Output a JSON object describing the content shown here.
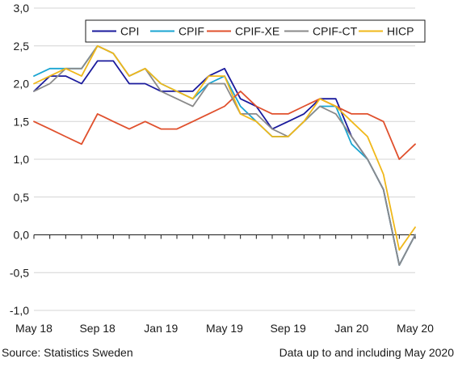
{
  "chart_data": {
    "type": "line",
    "x": [
      "May 18",
      "Jun 18",
      "Jul 18",
      "Aug 18",
      "Sep 18",
      "Oct 18",
      "Nov 18",
      "Dec 18",
      "Jan 19",
      "Feb 19",
      "Mar 19",
      "Apr 19",
      "May 19",
      "Jun 19",
      "Jul 19",
      "Aug 19",
      "Sep 19",
      "Oct 19",
      "Nov 19",
      "Dec 19",
      "Jan 20",
      "Feb 20",
      "Mar 20",
      "Apr 20",
      "May 20"
    ],
    "x_tick_labels": [
      "May 18",
      "Sep 18",
      "Jan 19",
      "May 19",
      "Sep 19",
      "Jan 20",
      "May 20"
    ],
    "y_tick_labels": [
      "3,0",
      "2,5",
      "2,0",
      "1,5",
      "1,0",
      "0,5",
      "0,0",
      "-0,5",
      "-1,0"
    ],
    "ylim": [
      -1.0,
      3.0
    ],
    "y_ticks": [
      3.0,
      2.5,
      2.0,
      1.5,
      1.0,
      0.5,
      0.0,
      -0.5,
      -1.0
    ],
    "grid": "horizontal",
    "legend_position": "top-right",
    "series": [
      {
        "name": "CPI",
        "color": "#1a1a9c",
        "values": [
          1.9,
          2.1,
          2.1,
          2.0,
          2.3,
          2.3,
          2.0,
          2.0,
          1.9,
          1.9,
          1.9,
          2.1,
          2.2,
          1.8,
          1.7,
          1.4,
          1.5,
          1.6,
          1.8,
          1.8,
          1.3,
          1.0,
          0.6,
          -0.4,
          0.0
        ]
      },
      {
        "name": "CPIF",
        "color": "#1aa5d2",
        "values": [
          2.1,
          2.2,
          2.2,
          2.2,
          2.5,
          2.4,
          2.1,
          2.2,
          2.0,
          1.9,
          1.8,
          2.0,
          2.1,
          1.7,
          1.5,
          1.3,
          1.3,
          1.5,
          1.7,
          1.7,
          1.2,
          1.0,
          0.6,
          -0.4,
          0.0
        ]
      },
      {
        "name": "CPIF-XE",
        "color": "#e0502d",
        "values": [
          1.5,
          1.4,
          1.3,
          1.2,
          1.6,
          1.5,
          1.4,
          1.5,
          1.4,
          1.4,
          1.5,
          1.6,
          1.7,
          1.9,
          1.7,
          1.6,
          1.6,
          1.7,
          1.8,
          1.7,
          1.6,
          1.6,
          1.5,
          1.0,
          1.2
        ]
      },
      {
        "name": "CPIF-CT",
        "color": "#8a8a8a",
        "values": [
          1.9,
          2.0,
          2.2,
          2.2,
          2.5,
          2.4,
          2.1,
          2.2,
          1.9,
          1.8,
          1.7,
          2.0,
          2.0,
          1.6,
          1.6,
          1.4,
          1.3,
          1.5,
          1.7,
          1.6,
          1.3,
          1.0,
          0.6,
          -0.4,
          0.0
        ]
      },
      {
        "name": "HICP",
        "color": "#f0b81a",
        "values": [
          2.0,
          2.1,
          2.2,
          2.1,
          2.5,
          2.4,
          2.1,
          2.2,
          2.0,
          1.9,
          1.8,
          2.1,
          2.1,
          1.6,
          1.5,
          1.3,
          1.3,
          1.5,
          1.8,
          1.7,
          1.5,
          1.3,
          0.8,
          -0.2,
          0.1
        ]
      }
    ]
  },
  "footer": {
    "source": "Source: Statistics Sweden",
    "note": "Data up to and including May 2020"
  }
}
